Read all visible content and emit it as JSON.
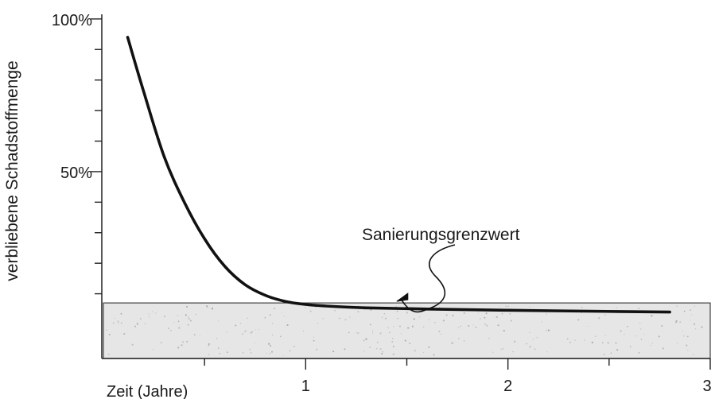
{
  "chart_data": {
    "type": "line",
    "ylabel": "verbliebene Schadstoffmenge",
    "xlabel": "Zeit (Jahre)",
    "xlim": [
      0,
      3
    ],
    "ylim": [
      0,
      100
    ],
    "x_ticks": [
      {
        "value": 1,
        "label": "1"
      },
      {
        "value": 2,
        "label": "2"
      },
      {
        "value": 3,
        "label": "3"
      }
    ],
    "y_ticks": [
      {
        "value": 50,
        "label": "50%"
      },
      {
        "value": 100,
        "label": "100%"
      }
    ],
    "series": [
      {
        "x": [
          0.12,
          0.2,
          0.3,
          0.4,
          0.5,
          0.6,
          0.7,
          0.8,
          0.9,
          1.0,
          1.1,
          1.3,
          1.6,
          2.0,
          2.4,
          2.8
        ],
        "y": [
          94,
          76,
          55,
          40,
          28,
          19,
          13,
          9.5,
          7.5,
          6.5,
          6,
          5.4,
          5,
          4.6,
          4.3,
          4
        ]
      }
    ],
    "band": {
      "y_from": 0,
      "y_to": 7
    },
    "annotations": [
      {
        "text": "Sanierungsgrenzwert",
        "arrow_to": {
          "x": 1.45,
          "y": 7
        }
      }
    ],
    "colors": {
      "line": "#111111",
      "axis": "#222222",
      "band_fill": "#e6e6e6",
      "band_stroke": "#444444"
    }
  }
}
